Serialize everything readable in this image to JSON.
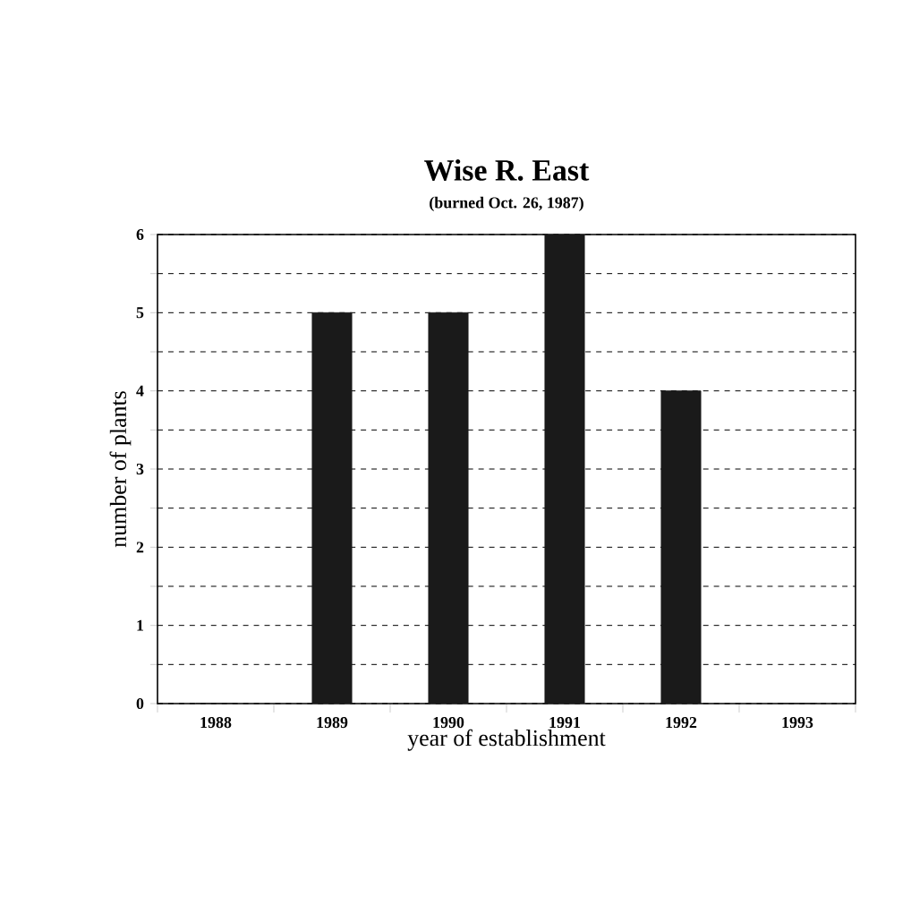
{
  "chart_data": {
    "type": "bar",
    "title": "Wise R. East",
    "subtitle": "(burned Oct. 26, 1987)",
    "xlabel": "year of establishment",
    "ylabel": "number of plants",
    "categories": [
      "1988",
      "1989",
      "1990",
      "1991",
      "1992",
      "1993"
    ],
    "values": [
      0,
      5,
      5,
      6,
      4,
      0
    ],
    "color": "#1a1a1a",
    "ylim": [
      0,
      6
    ],
    "yticks": [
      0,
      {
        "value": 0.5,
        "label": null
      },
      1,
      {
        "value": 1.5,
        "label": null
      },
      2,
      {
        "value": 2.5,
        "label": null
      },
      3,
      {
        "value": 3.5,
        "label": null
      },
      4,
      {
        "value": 4.5,
        "label": null
      },
      5,
      {
        "value": 5.5,
        "label": null
      },
      6
    ],
    "grid": "y"
  }
}
